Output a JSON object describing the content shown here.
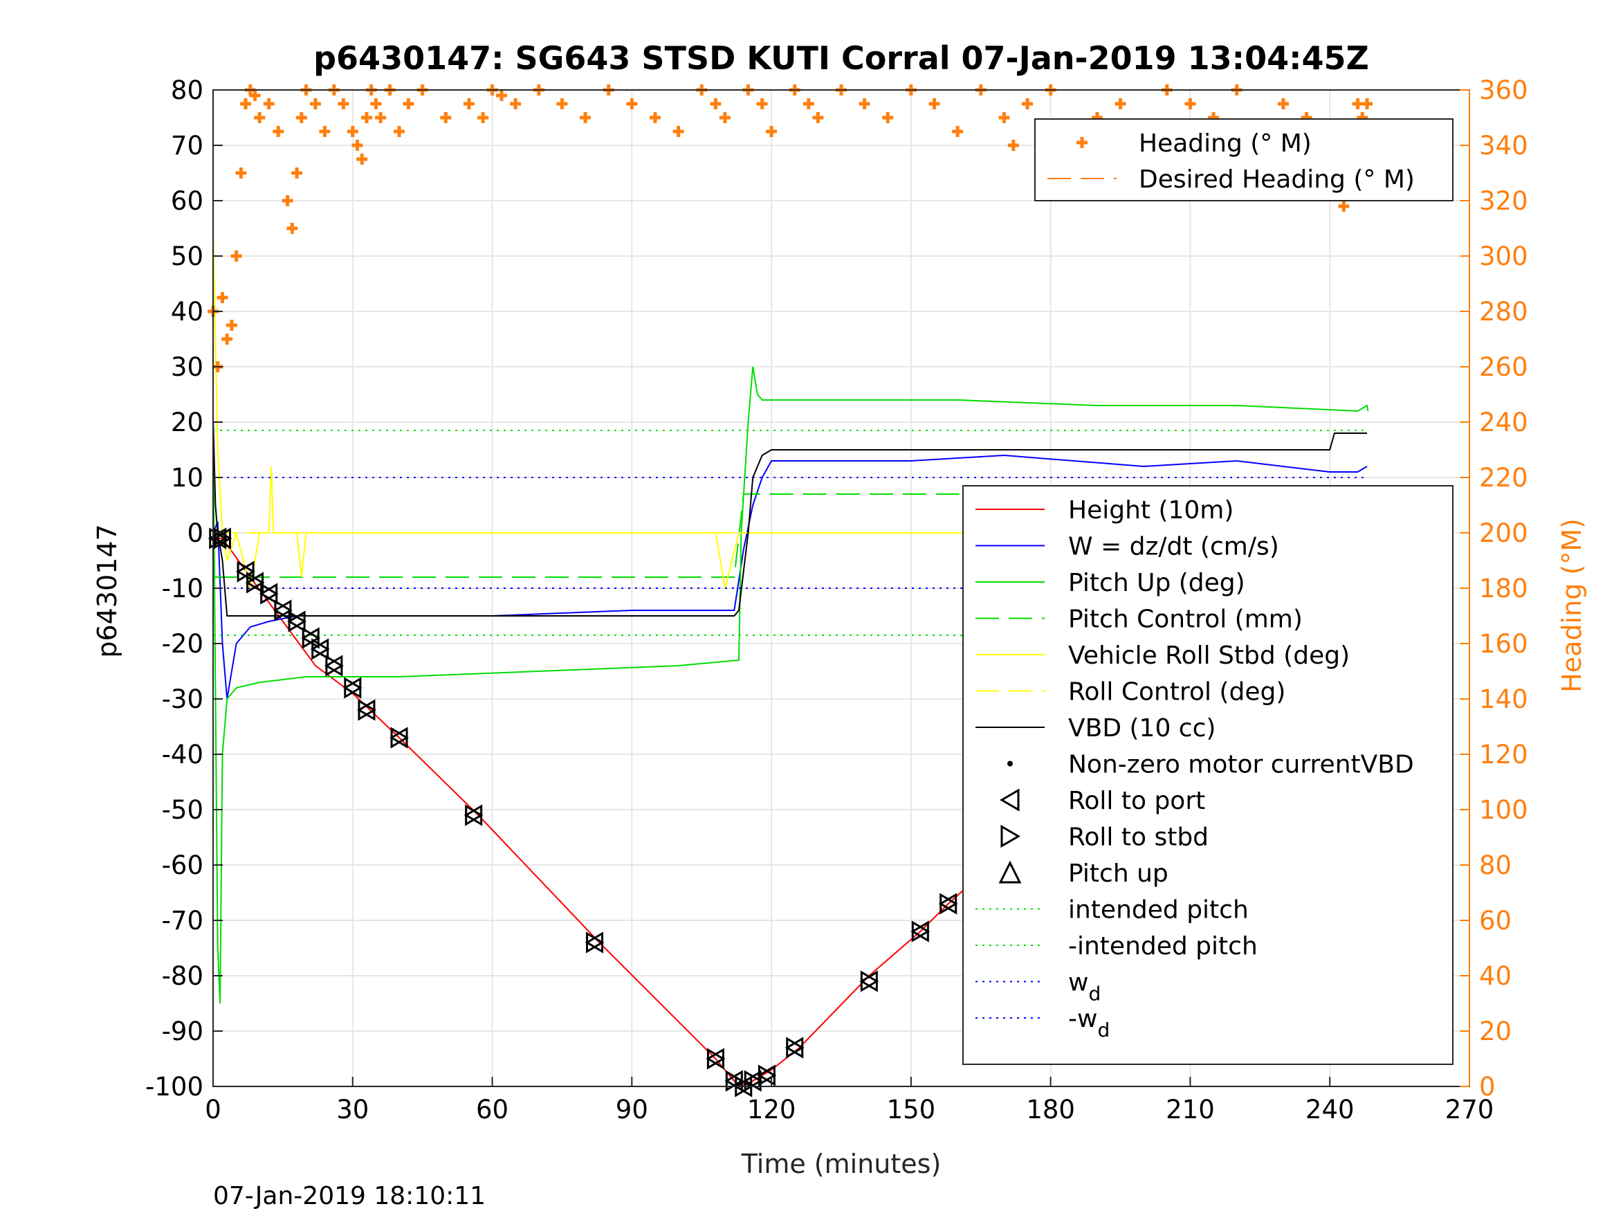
{
  "chart_data": {
    "type": "line",
    "title": "p6430147: SG643 STSD KUTI Corral 07-Jan-2019 13:04:45Z",
    "xlabel": "Time (minutes)",
    "ylabel_left": "p6430147",
    "ylabel_right": "Heading (°M)",
    "footer_timestamp": "07-Jan-2019 18:10:11",
    "xlim": [
      0,
      270
    ],
    "ylim_left": [
      -100,
      80
    ],
    "ylim_right": [
      0,
      360
    ],
    "x_ticks": [
      0,
      30,
      60,
      90,
      120,
      150,
      180,
      210,
      240,
      270
    ],
    "y_left_ticks": [
      80,
      70,
      60,
      50,
      40,
      30,
      20,
      10,
      0,
      -10,
      -20,
      -30,
      -40,
      -50,
      -60,
      -70,
      -80,
      -90,
      -100
    ],
    "y_right_ticks": [
      360,
      340,
      320,
      300,
      280,
      260,
      240,
      220,
      200,
      180,
      160,
      140,
      120,
      100,
      80,
      60,
      40,
      20,
      0
    ],
    "grid": true,
    "legend_heading": {
      "placement": "top-right",
      "entries": [
        {
          "label": "Heading (° M)",
          "color": "#ff7f0e",
          "style": "plus"
        },
        {
          "label": "Desired Heading (° M)",
          "color": "#ff7f0e",
          "style": "dashed"
        }
      ]
    },
    "legend_main": {
      "placement": "center-right",
      "entries": [
        {
          "label": "Height (10m)",
          "color": "#ff0000",
          "style": "solid"
        },
        {
          "label": "W = dz/dt (cm/s)",
          "color": "#0000ff",
          "style": "solid"
        },
        {
          "label": "Pitch Up (deg)",
          "color": "#00dd00",
          "style": "solid"
        },
        {
          "label": "Pitch Control (mm)",
          "color": "#00dd00",
          "style": "dashed"
        },
        {
          "label": "Vehicle Roll Stbd (deg)",
          "color": "#ffff00",
          "style": "solid"
        },
        {
          "label": "Roll Control (deg)",
          "color": "#ffff00",
          "style": "dashed"
        },
        {
          "label": "VBD (10 cc)",
          "color": "#000000",
          "style": "solid"
        },
        {
          "label": "Non-zero motor currentVBD",
          "color": "#000000",
          "style": "dot"
        },
        {
          "label": "Roll to port",
          "color": "#000000",
          "style": "tri-left"
        },
        {
          "label": "Roll to stbd",
          "color": "#000000",
          "style": "tri-right"
        },
        {
          "label": "Pitch up",
          "color": "#000000",
          "style": "tri-up"
        },
        {
          "label": "intended pitch",
          "color": "#00dd00",
          "style": "dotted"
        },
        {
          "label": "-intended pitch",
          "color": "#00dd00",
          "style": "dotted"
        },
        {
          "label": "w",
          "sub": "d",
          "color": "#0000ff",
          "style": "dotted"
        },
        {
          "label": "-w",
          "sub": "d",
          "color": "#0000ff",
          "style": "dotted"
        }
      ]
    },
    "series": [
      {
        "name": "Height (10m)",
        "color": "#ff0000",
        "x": [
          0,
          2,
          8,
          15,
          22,
          30,
          40,
          57,
          83,
          108,
          113,
          116,
          120,
          126,
          141,
          152,
          158,
          170,
          180,
          194,
          207,
          222,
          232,
          241,
          248
        ],
        "y": [
          -1,
          -1,
          -8,
          -16,
          -24,
          -29,
          -37,
          -51,
          -74,
          -95,
          -100,
          -99,
          -97,
          -93,
          -80,
          -72,
          -67,
          -58,
          -49,
          -39,
          -30,
          -19,
          -11,
          -5,
          -1
        ]
      },
      {
        "name": "W = dz/dt (cm/s)",
        "color": "#0000ff",
        "x": [
          0,
          1,
          2,
          3,
          5,
          8,
          12,
          18,
          30,
          60,
          90,
          112,
          114,
          116,
          118,
          120,
          125,
          150,
          170,
          200,
          220,
          240,
          246,
          248
        ],
        "y": [
          0,
          2,
          -20,
          -30,
          -20,
          -17,
          -16,
          -15,
          -15,
          -15,
          -14,
          -14,
          -3,
          5,
          10,
          13,
          13,
          13,
          14,
          12,
          13,
          11,
          11,
          12
        ]
      },
      {
        "name": "Pitch Up (deg)",
        "color": "#00dd00",
        "x": [
          0,
          1,
          1.5,
          2,
          3,
          5,
          10,
          20,
          40,
          70,
          100,
          113,
          113.5,
          115,
          116,
          117,
          118,
          130,
          160,
          190,
          220,
          246,
          248,
          248.2
        ],
        "y": [
          20,
          -75,
          -85,
          -40,
          -30,
          -28,
          -27,
          -26,
          -26,
          -25,
          -24,
          -23,
          0,
          20,
          30,
          25,
          24,
          24,
          24,
          23,
          23,
          22,
          23,
          22
        ]
      },
      {
        "name": "Pitch Control (mm)",
        "color": "#00dd00",
        "dashed": true,
        "x": [
          0,
          112,
          114,
          248
        ],
        "y": [
          -8,
          -8,
          7,
          7
        ]
      },
      {
        "name": "Vehicle Roll Stbd (deg)",
        "color": "#ffff00",
        "x": [
          0,
          1,
          2,
          3,
          5,
          8,
          10,
          12,
          12.5,
          13,
          18,
          19,
          20,
          30,
          40,
          60,
          85,
          108,
          110,
          113,
          116,
          120,
          140,
          160,
          180,
          200,
          220,
          240,
          248
        ],
        "y": [
          55,
          15,
          0,
          -5,
          0,
          -10,
          0,
          0,
          12,
          0,
          0,
          -8,
          0,
          0,
          0,
          0,
          0,
          0,
          -10,
          0,
          0,
          0,
          0,
          0,
          0,
          0,
          0,
          0,
          -12
        ]
      },
      {
        "name": "Roll Control (deg)",
        "color": "#ffff00",
        "dashed": true,
        "x": [
          0,
          248
        ],
        "y": [
          0,
          0
        ]
      },
      {
        "name": "VBD (10 cc)",
        "color": "#000000",
        "x": [
          0,
          0.5,
          1,
          2,
          3,
          112,
          113,
          115,
          116,
          118,
          120,
          240,
          241,
          248
        ],
        "y": [
          21,
          5,
          0,
          -5,
          -15,
          -15,
          -14,
          0,
          10,
          14,
          15,
          15,
          18,
          18
        ]
      },
      {
        "name": "intended pitch",
        "color": "#00dd00",
        "dotted": true,
        "x": [
          0,
          248
        ],
        "y": [
          18.5,
          18.5
        ]
      },
      {
        "name": "-intended pitch",
        "color": "#00dd00",
        "dotted": true,
        "x": [
          0,
          248
        ],
        "y": [
          -18.5,
          -18.5
        ]
      },
      {
        "name": "w_d",
        "color": "#0000ff",
        "dotted": true,
        "x": [
          0,
          248
        ],
        "y": [
          10,
          10
        ]
      },
      {
        "name": "-w_d",
        "color": "#0000ff",
        "dotted": true,
        "x": [
          0,
          248
        ],
        "y": [
          -10,
          -10
        ]
      }
    ],
    "markers": {
      "x": [
        1,
        2,
        7,
        9,
        12,
        15,
        18,
        21,
        23,
        26,
        30,
        33,
        40,
        56,
        82,
        108,
        112,
        114,
        116,
        119,
        125,
        141,
        152,
        158,
        170,
        175,
        181,
        188,
        194,
        200,
        207,
        221,
        231,
        233,
        239,
        241,
        243,
        245,
        247,
        248
      ],
      "y": [
        -1,
        -1,
        -7,
        -9,
        -11,
        -14,
        -16,
        -19,
        -21,
        -24,
        -28,
        -32,
        -37,
        -51,
        -74,
        -95,
        -99,
        -100,
        -99,
        -98,
        -93,
        -81,
        -72,
        -67,
        -59,
        -54,
        -49,
        -44,
        -39,
        -35,
        -30,
        -20,
        -13,
        -11,
        -7,
        -6,
        -4,
        -3,
        -2,
        -1
      ]
    },
    "heading": {
      "name": "Heading (° M)",
      "color": "#ff7f0e",
      "x": [
        0,
        1,
        2,
        3,
        4,
        5,
        6,
        7,
        8,
        9,
        10,
        12,
        14,
        16,
        17,
        18,
        19,
        20,
        22,
        24,
        26,
        28,
        30,
        31,
        32,
        33,
        34,
        35,
        36,
        38,
        40,
        42,
        45,
        50,
        55,
        58,
        60,
        62,
        65,
        70,
        75,
        80,
        85,
        90,
        95,
        100,
        105,
        108,
        110,
        115,
        118,
        120,
        125,
        128,
        130,
        135,
        140,
        145,
        150,
        155,
        160,
        165,
        170,
        172,
        175,
        180,
        185,
        190,
        195,
        200,
        205,
        210,
        215,
        220,
        225,
        230,
        235,
        240,
        242,
        243,
        244,
        245,
        246,
        247,
        248
      ],
      "y": [
        280,
        260,
        285,
        270,
        275,
        300,
        330,
        355,
        360,
        358,
        350,
        355,
        345,
        320,
        310,
        330,
        350,
        360,
        355,
        345,
        360,
        355,
        345,
        340,
        335,
        350,
        360,
        355,
        350,
        360,
        345,
        355,
        360,
        350,
        355,
        350,
        360,
        358,
        355,
        360,
        355,
        350,
        360,
        355,
        350,
        345,
        360,
        355,
        350,
        360,
        355,
        345,
        360,
        355,
        350,
        360,
        355,
        350,
        360,
        355,
        345,
        360,
        350,
        340,
        355,
        360,
        345,
        350,
        355,
        345,
        360,
        355,
        350,
        360,
        345,
        355,
        350,
        345,
        330,
        318,
        325,
        345,
        355,
        350,
        355
      ]
    }
  }
}
